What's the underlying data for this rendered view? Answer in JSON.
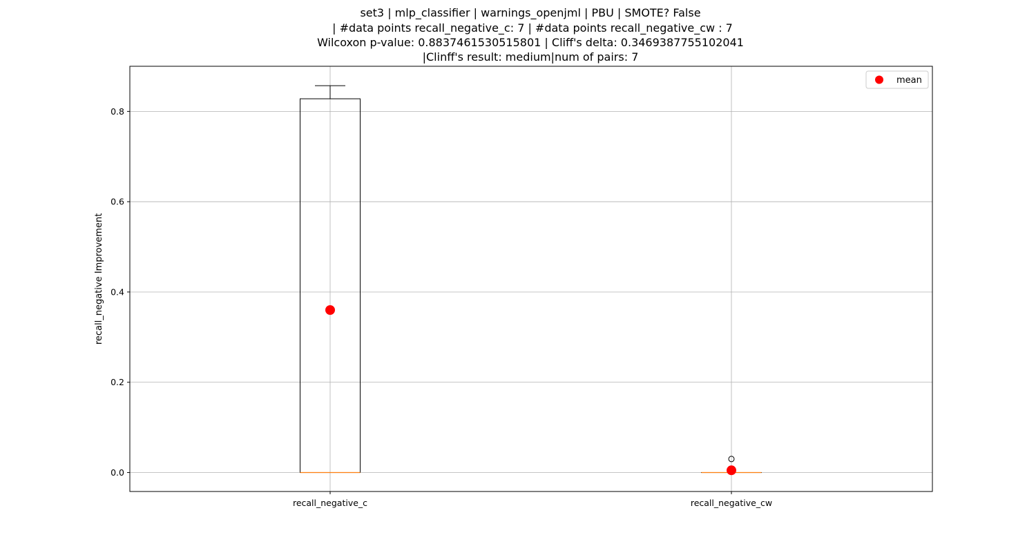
{
  "chart_data": {
    "type": "box",
    "title_lines": [
      "set3 | mlp_classifier | warnings_openjml | PBU | SMOTE? False",
      "| #data points recall_negative_c: 7 | #data points recall_negative_cw : 7",
      "Wilcoxon p-value: 0.8837461530515801 | Cliff's delta: 0.3469387755102041",
      "|Clinff's result: medium|num of pairs: 7"
    ],
    "xlabel": "",
    "ylabel": "recall_negative Improvement",
    "ylim": [
      -0.042,
      0.9
    ],
    "yticks": [
      0.0,
      0.2,
      0.4,
      0.6,
      0.8
    ],
    "ytick_labels": [
      "0.0",
      "0.2",
      "0.4",
      "0.6",
      "0.8"
    ],
    "grid": true,
    "legend": {
      "placement": "top-right",
      "entries": [
        "mean"
      ]
    },
    "colors": {
      "mean": "#ff0000",
      "median": "#ff7f0e",
      "box": "#000000",
      "grid": "#b0b0b0"
    },
    "categories": [
      "recall_negative_c",
      "recall_negative_cw"
    ],
    "boxes": [
      {
        "q1": 0.0,
        "median": 0.0,
        "q3": 0.828,
        "whisker_low": 0.0,
        "whisker_high": 0.857,
        "mean": 0.36,
        "outliers": []
      },
      {
        "q1": 0.0,
        "median": 0.0,
        "q3": 0.0,
        "whisker_low": 0.0,
        "whisker_high": 0.0,
        "mean": 0.005,
        "outliers": [
          0.03
        ]
      }
    ]
  }
}
